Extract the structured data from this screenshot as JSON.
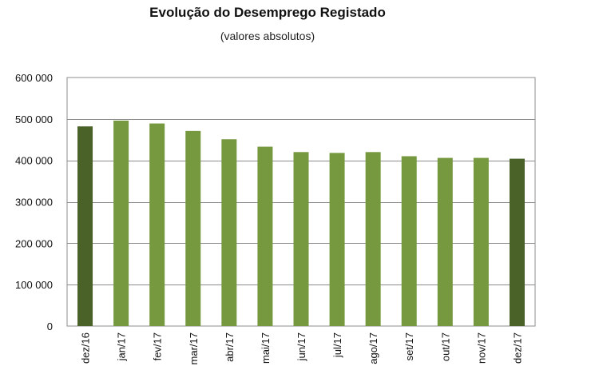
{
  "chart_data": {
    "type": "bar",
    "title": "Evolução do Desemprego Registado",
    "subtitle": "(valores absolutos)",
    "xlabel": "",
    "ylabel": "",
    "categories": [
      "dez/16",
      "jan/17",
      "fev/17",
      "mar/17",
      "abr/17",
      "mai/17",
      "jun/17",
      "jul/17",
      "ago/17",
      "set/17",
      "out/17",
      "nov/17",
      "dez/17"
    ],
    "values": [
      482000,
      496000,
      489000,
      471000,
      451000,
      433000,
      420000,
      418000,
      420000,
      410000,
      406000,
      406000,
      404000
    ],
    "highlight_categories": [
      "dez/16",
      "dez/17"
    ],
    "ylim": [
      0,
      600000
    ],
    "yticks": [
      0,
      100000,
      200000,
      300000,
      400000,
      500000,
      600000
    ],
    "ytick_labels": [
      "0",
      "100 000",
      "200 000",
      "300 000",
      "400 000",
      "500 000",
      "600 000"
    ],
    "grid": true,
    "legend": "none",
    "colors": {
      "bar": "#76993f",
      "highlight": "#4a6128",
      "grid": "#8c8c8c",
      "frame": "#8c8c8c"
    }
  }
}
